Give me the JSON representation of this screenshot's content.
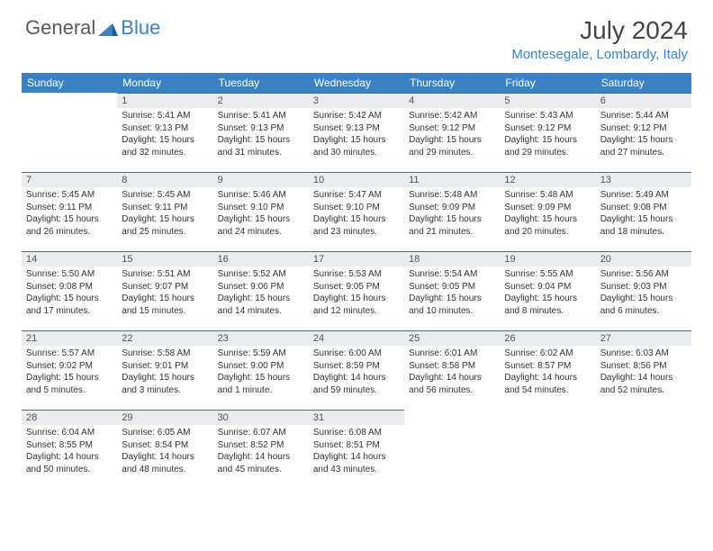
{
  "brand": {
    "general": "General",
    "blue": "Blue"
  },
  "title": "July 2024",
  "location": "Montesegale, Lombardy, Italy",
  "colors": {
    "header_bg": "#3b82c4",
    "header_text": "#ffffff",
    "daynum_bg": "#e9ecef",
    "border": "#3b6fa0",
    "brand_gray": "#5a5a5a",
    "brand_blue": "#3b82c4"
  },
  "weekdays": [
    "Sunday",
    "Monday",
    "Tuesday",
    "Wednesday",
    "Thursday",
    "Friday",
    "Saturday"
  ],
  "weeks": [
    [
      {
        "empty": true
      },
      {
        "num": "1",
        "sunrise": "Sunrise: 5:41 AM",
        "sunset": "Sunset: 9:13 PM",
        "daylight1": "Daylight: 15 hours",
        "daylight2": "and 32 minutes."
      },
      {
        "num": "2",
        "sunrise": "Sunrise: 5:41 AM",
        "sunset": "Sunset: 9:13 PM",
        "daylight1": "Daylight: 15 hours",
        "daylight2": "and 31 minutes."
      },
      {
        "num": "3",
        "sunrise": "Sunrise: 5:42 AM",
        "sunset": "Sunset: 9:13 PM",
        "daylight1": "Daylight: 15 hours",
        "daylight2": "and 30 minutes."
      },
      {
        "num": "4",
        "sunrise": "Sunrise: 5:42 AM",
        "sunset": "Sunset: 9:12 PM",
        "daylight1": "Daylight: 15 hours",
        "daylight2": "and 29 minutes."
      },
      {
        "num": "5",
        "sunrise": "Sunrise: 5:43 AM",
        "sunset": "Sunset: 9:12 PM",
        "daylight1": "Daylight: 15 hours",
        "daylight2": "and 29 minutes."
      },
      {
        "num": "6",
        "sunrise": "Sunrise: 5:44 AM",
        "sunset": "Sunset: 9:12 PM",
        "daylight1": "Daylight: 15 hours",
        "daylight2": "and 27 minutes."
      }
    ],
    [
      {
        "num": "7",
        "sunrise": "Sunrise: 5:45 AM",
        "sunset": "Sunset: 9:11 PM",
        "daylight1": "Daylight: 15 hours",
        "daylight2": "and 26 minutes."
      },
      {
        "num": "8",
        "sunrise": "Sunrise: 5:45 AM",
        "sunset": "Sunset: 9:11 PM",
        "daylight1": "Daylight: 15 hours",
        "daylight2": "and 25 minutes."
      },
      {
        "num": "9",
        "sunrise": "Sunrise: 5:46 AM",
        "sunset": "Sunset: 9:10 PM",
        "daylight1": "Daylight: 15 hours",
        "daylight2": "and 24 minutes."
      },
      {
        "num": "10",
        "sunrise": "Sunrise: 5:47 AM",
        "sunset": "Sunset: 9:10 PM",
        "daylight1": "Daylight: 15 hours",
        "daylight2": "and 23 minutes."
      },
      {
        "num": "11",
        "sunrise": "Sunrise: 5:48 AM",
        "sunset": "Sunset: 9:09 PM",
        "daylight1": "Daylight: 15 hours",
        "daylight2": "and 21 minutes."
      },
      {
        "num": "12",
        "sunrise": "Sunrise: 5:48 AM",
        "sunset": "Sunset: 9:09 PM",
        "daylight1": "Daylight: 15 hours",
        "daylight2": "and 20 minutes."
      },
      {
        "num": "13",
        "sunrise": "Sunrise: 5:49 AM",
        "sunset": "Sunset: 9:08 PM",
        "daylight1": "Daylight: 15 hours",
        "daylight2": "and 18 minutes."
      }
    ],
    [
      {
        "num": "14",
        "sunrise": "Sunrise: 5:50 AM",
        "sunset": "Sunset: 9:08 PM",
        "daylight1": "Daylight: 15 hours",
        "daylight2": "and 17 minutes."
      },
      {
        "num": "15",
        "sunrise": "Sunrise: 5:51 AM",
        "sunset": "Sunset: 9:07 PM",
        "daylight1": "Daylight: 15 hours",
        "daylight2": "and 15 minutes."
      },
      {
        "num": "16",
        "sunrise": "Sunrise: 5:52 AM",
        "sunset": "Sunset: 9:06 PM",
        "daylight1": "Daylight: 15 hours",
        "daylight2": "and 14 minutes."
      },
      {
        "num": "17",
        "sunrise": "Sunrise: 5:53 AM",
        "sunset": "Sunset: 9:05 PM",
        "daylight1": "Daylight: 15 hours",
        "daylight2": "and 12 minutes."
      },
      {
        "num": "18",
        "sunrise": "Sunrise: 5:54 AM",
        "sunset": "Sunset: 9:05 PM",
        "daylight1": "Daylight: 15 hours",
        "daylight2": "and 10 minutes."
      },
      {
        "num": "19",
        "sunrise": "Sunrise: 5:55 AM",
        "sunset": "Sunset: 9:04 PM",
        "daylight1": "Daylight: 15 hours",
        "daylight2": "and 8 minutes."
      },
      {
        "num": "20",
        "sunrise": "Sunrise: 5:56 AM",
        "sunset": "Sunset: 9:03 PM",
        "daylight1": "Daylight: 15 hours",
        "daylight2": "and 6 minutes."
      }
    ],
    [
      {
        "num": "21",
        "sunrise": "Sunrise: 5:57 AM",
        "sunset": "Sunset: 9:02 PM",
        "daylight1": "Daylight: 15 hours",
        "daylight2": "and 5 minutes."
      },
      {
        "num": "22",
        "sunrise": "Sunrise: 5:58 AM",
        "sunset": "Sunset: 9:01 PM",
        "daylight1": "Daylight: 15 hours",
        "daylight2": "and 3 minutes."
      },
      {
        "num": "23",
        "sunrise": "Sunrise: 5:59 AM",
        "sunset": "Sunset: 9:00 PM",
        "daylight1": "Daylight: 15 hours",
        "daylight2": "and 1 minute."
      },
      {
        "num": "24",
        "sunrise": "Sunrise: 6:00 AM",
        "sunset": "Sunset: 8:59 PM",
        "daylight1": "Daylight: 14 hours",
        "daylight2": "and 59 minutes."
      },
      {
        "num": "25",
        "sunrise": "Sunrise: 6:01 AM",
        "sunset": "Sunset: 8:58 PM",
        "daylight1": "Daylight: 14 hours",
        "daylight2": "and 56 minutes."
      },
      {
        "num": "26",
        "sunrise": "Sunrise: 6:02 AM",
        "sunset": "Sunset: 8:57 PM",
        "daylight1": "Daylight: 14 hours",
        "daylight2": "and 54 minutes."
      },
      {
        "num": "27",
        "sunrise": "Sunrise: 6:03 AM",
        "sunset": "Sunset: 8:56 PM",
        "daylight1": "Daylight: 14 hours",
        "daylight2": "and 52 minutes."
      }
    ],
    [
      {
        "num": "28",
        "sunrise": "Sunrise: 6:04 AM",
        "sunset": "Sunset: 8:55 PM",
        "daylight1": "Daylight: 14 hours",
        "daylight2": "and 50 minutes."
      },
      {
        "num": "29",
        "sunrise": "Sunrise: 6:05 AM",
        "sunset": "Sunset: 8:54 PM",
        "daylight1": "Daylight: 14 hours",
        "daylight2": "and 48 minutes."
      },
      {
        "num": "30",
        "sunrise": "Sunrise: 6:07 AM",
        "sunset": "Sunset: 8:52 PM",
        "daylight1": "Daylight: 14 hours",
        "daylight2": "and 45 minutes."
      },
      {
        "num": "31",
        "sunrise": "Sunrise: 6:08 AM",
        "sunset": "Sunset: 8:51 PM",
        "daylight1": "Daylight: 14 hours",
        "daylight2": "and 43 minutes."
      },
      {
        "empty": true
      },
      {
        "empty": true
      },
      {
        "empty": true
      }
    ]
  ]
}
